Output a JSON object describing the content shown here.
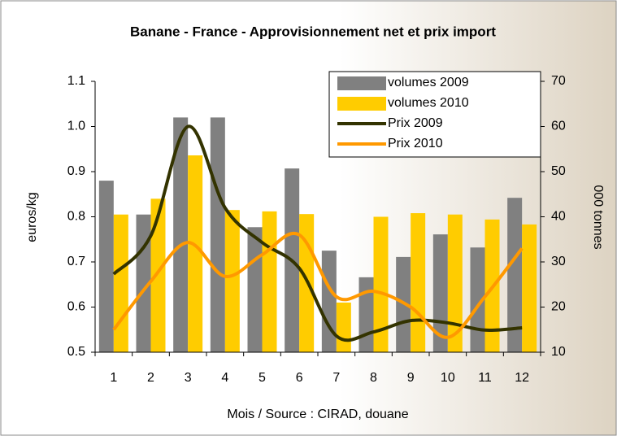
{
  "chart_data": {
    "type": "bar_line",
    "title": "Banane - France - Approvisionnement net et prix import",
    "xlabel": "Mois / Source : CIRAD, douane",
    "ylabel": "euros/kg",
    "y2label": "000 tonnes",
    "categories": [
      "1",
      "2",
      "3",
      "4",
      "5",
      "6",
      "7",
      "8",
      "9",
      "10",
      "11",
      "12"
    ],
    "ylim": [
      0.5,
      1.1
    ],
    "yticks": [
      0.5,
      0.6,
      0.7,
      0.8,
      0.9,
      {
        "value": 1,
        "label": "1.0"
      },
      1.1
    ],
    "y2lim": [
      10,
      70
    ],
    "y2ticks": [
      10,
      20,
      30,
      40,
      50,
      60,
      70
    ],
    "legend": "top-right",
    "series": [
      {
        "name": "volumes 2009",
        "type": "bar",
        "axis": "y2",
        "color": "#808080",
        "values": [
          48,
          40.5,
          62,
          62,
          37.7,
          50.7,
          32.5,
          26.6,
          31.1,
          36.1,
          33.2,
          44.2
        ]
      },
      {
        "name": "volumes 2010",
        "type": "bar",
        "axis": "y2",
        "color": "#ffcc00",
        "values": [
          40.5,
          44,
          53.6,
          41.5,
          41.2,
          40.6,
          21,
          40,
          40.8,
          40.5,
          39.4,
          38.3
        ]
      },
      {
        "name": "Prix 2009",
        "type": "line",
        "color": "#333300",
        "values": [
          0.673,
          0.758,
          1.0,
          0.82,
          0.743,
          0.686,
          0.536,
          0.545,
          0.57,
          0.565,
          0.549,
          0.554
        ]
      },
      {
        "name": "Prix 2010",
        "type": "line",
        "color": "#ff9900",
        "values": [
          0.55,
          0.657,
          0.743,
          0.668,
          0.716,
          0.76,
          0.623,
          0.635,
          0.6,
          0.533,
          0.623,
          0.73
        ]
      }
    ]
  }
}
